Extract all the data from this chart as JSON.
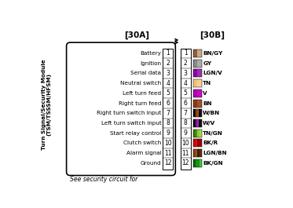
{
  "title_line1": "Turn Signal/Security Module",
  "title_line2": "(TSM/TSSSM/HFSM)",
  "label_30A": "[30A]",
  "label_30B": "[30B]",
  "footer": "See security circuit for",
  "pin_labels_left": [
    "Battery",
    "Ignition",
    "Serial data",
    "Neutral switch",
    "Left turn feed",
    "Right turn feed",
    "Right turn switch input",
    "Left turn switch input",
    "Start relay control",
    "Clutch switch",
    "Alarm signal",
    "Ground"
  ],
  "pin_numbers": [
    1,
    2,
    3,
    4,
    5,
    6,
    7,
    8,
    9,
    10,
    11,
    12
  ],
  "wire_labels": [
    "BN/GY",
    "GY",
    "LGN/V",
    "TN",
    "V",
    "BN",
    "W/BN",
    "W/V",
    "TN/GN",
    "BK/R",
    "LGN/BN",
    "BK/GN"
  ],
  "wire_stripe_sets": [
    [
      [
        "#8B5E3C",
        "#C8A882"
      ]
    ],
    [
      [
        "#888888",
        "#AAAAAA"
      ]
    ],
    [
      [
        "#8B00AA",
        "#9B30AA"
      ]
    ],
    [
      [
        "#F0C080",
        "#F5D090"
      ]
    ],
    [
      [
        "#AA00AA",
        "#CC00CC"
      ]
    ],
    [
      [
        "#8B3A0F",
        "#A0522D"
      ]
    ],
    [
      [
        "#000000",
        "#1A1A1A"
      ],
      [
        "#8B3A0F",
        "#A05020"
      ],
      [
        "#000000",
        "#1A1A1A"
      ]
    ],
    [
      [
        "#000000",
        "#1A1A1A"
      ],
      [
        "#8B00AA",
        "#9B30AA"
      ],
      [
        "#000000",
        "#1A1A1A"
      ]
    ],
    [
      [
        "#3A7A00",
        "#4A9A00"
      ],
      [
        "#90C840",
        "#A0D850"
      ]
    ],
    [
      [
        "#CC0000",
        "#DD1111"
      ],
      [
        "#8B0000",
        "#AA0000"
      ]
    ],
    [
      [
        "#8B3A0F",
        "#A05020"
      ],
      [
        "#3A2000",
        "#5A3010"
      ]
    ],
    [
      [
        "#006400",
        "#228B22"
      ],
      [
        "#228B22",
        "#32CD32"
      ]
    ]
  ],
  "bg_color": "#FFFFFF"
}
